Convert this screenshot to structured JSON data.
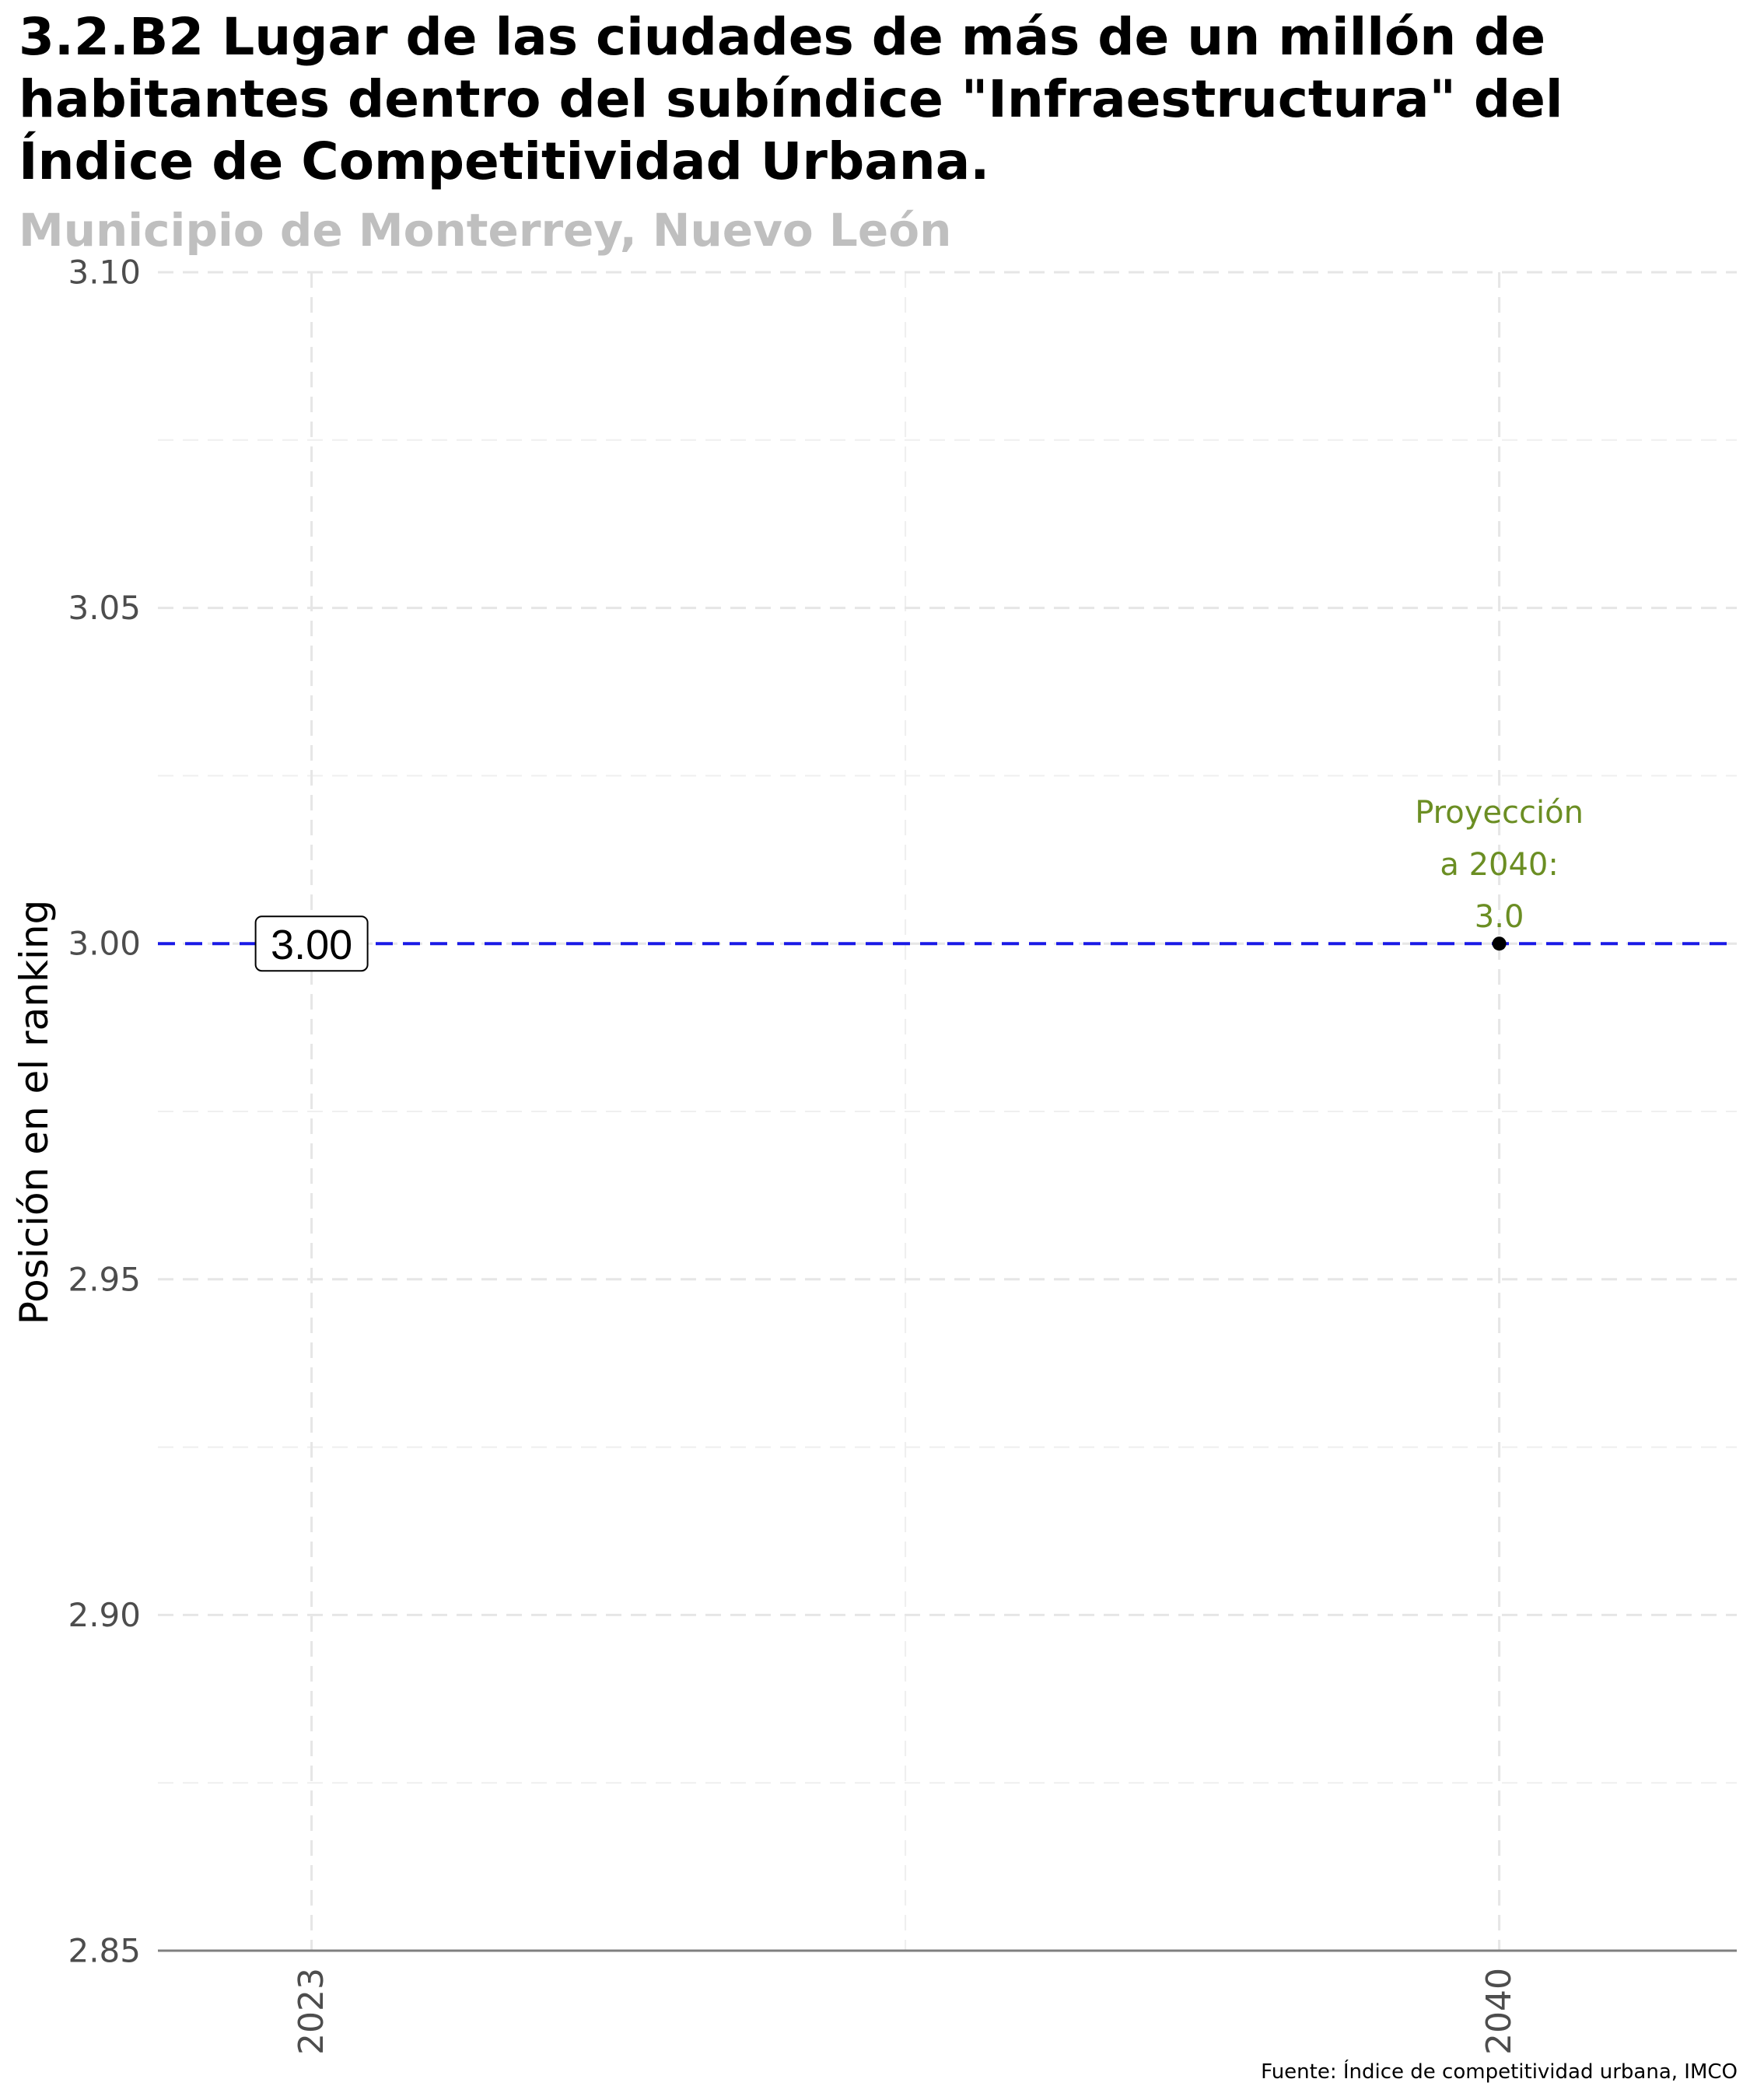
{
  "chart_data": {
    "type": "line",
    "title": "3.2.B2 Lugar de las ciudades de más de un millón de habitantes dentro del subíndice \"Infraestructura\" del Índice de Competitividad Urbana.",
    "subtitle": "Municipio de Monterrey, Nuevo León",
    "xlabel": "",
    "ylabel": "Posición en el ranking",
    "caption": "Fuente: Índice de competitividad urbana, IMCO",
    "x": [
      2023,
      2040
    ],
    "xticks": [
      "2023",
      "2040"
    ],
    "xlim": [
      2020.8,
      2043.4
    ],
    "ylim": [
      2.85,
      3.1
    ],
    "yticks": [
      "2.85",
      "2.90",
      "2.95",
      "3.00",
      "3.05",
      "3.10"
    ],
    "grid": true,
    "series": [
      {
        "name": "",
        "points": [
          {
            "x": 2023,
            "y": 3.0,
            "label": "3.00"
          }
        ]
      },
      {
        "name": "",
        "points": [
          {
            "x": 2040,
            "y": 3.0
          }
        ]
      }
    ],
    "reference_line": {
      "y": 3.0,
      "style": "dashed",
      "color": "#1a1ae6"
    },
    "annotations": [
      {
        "x": 2040,
        "y": 3.0,
        "lines": [
          "Proyección",
          "a 2040:",
          "3.0"
        ]
      }
    ],
    "colors": {
      "reference_line": "#1a1ae6",
      "annotation": "#6b8e23",
      "point": "#000000",
      "grid": "#e6e6e6",
      "subtitle": "#bfbfbf"
    }
  }
}
